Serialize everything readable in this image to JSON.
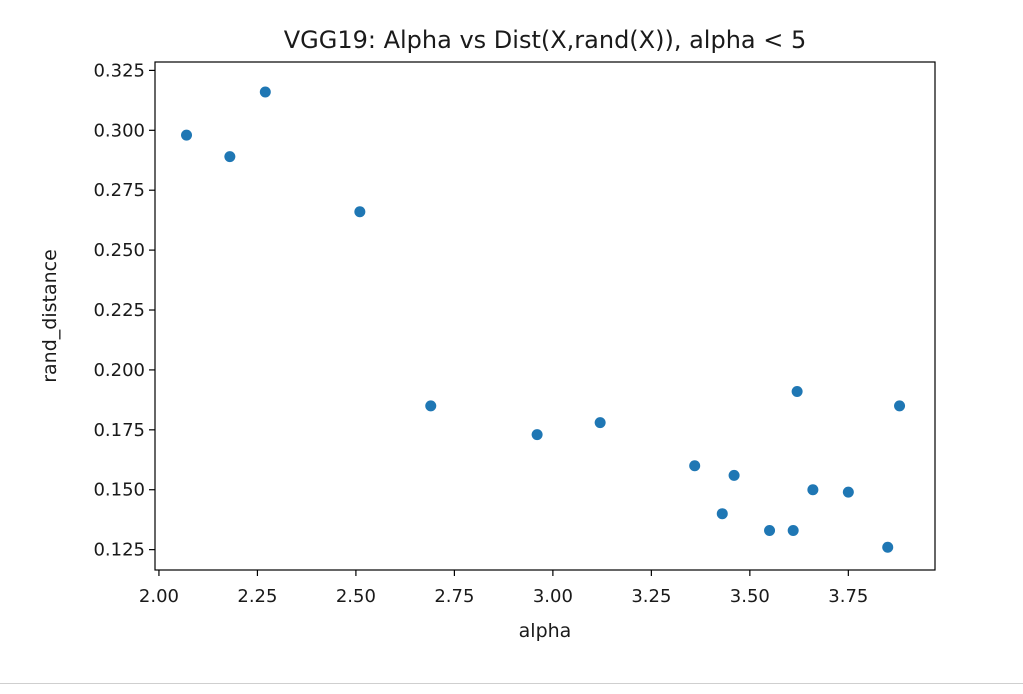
{
  "chart_data": {
    "type": "scatter",
    "title": "VGG19: Alpha vs Dist(X,rand(X)), alpha < 5",
    "xlabel": "alpha",
    "ylabel": "rand_distance",
    "xlim": [
      1.99,
      3.97
    ],
    "ylim": [
      0.1165,
      0.3285
    ],
    "xticks": [
      2.0,
      2.25,
      2.5,
      2.75,
      3.0,
      3.25,
      3.5,
      3.75
    ],
    "xtick_labels": [
      "2.00",
      "2.25",
      "2.50",
      "2.75",
      "3.00",
      "3.25",
      "3.50",
      "3.75"
    ],
    "yticks": [
      0.125,
      0.15,
      0.175,
      0.2,
      0.225,
      0.25,
      0.275,
      0.3,
      0.325
    ],
    "ytick_labels": [
      "0.125",
      "0.150",
      "0.175",
      "0.200",
      "0.225",
      "0.250",
      "0.275",
      "0.300",
      "0.325"
    ],
    "grid": false,
    "legend": false,
    "marker_color": "#1f77b4",
    "points": [
      {
        "x": 2.07,
        "y": 0.298
      },
      {
        "x": 2.18,
        "y": 0.289
      },
      {
        "x": 2.27,
        "y": 0.316
      },
      {
        "x": 2.51,
        "y": 0.266
      },
      {
        "x": 2.69,
        "y": 0.185
      },
      {
        "x": 2.96,
        "y": 0.173
      },
      {
        "x": 3.12,
        "y": 0.178
      },
      {
        "x": 3.36,
        "y": 0.16
      },
      {
        "x": 3.43,
        "y": 0.14
      },
      {
        "x": 3.46,
        "y": 0.156
      },
      {
        "x": 3.55,
        "y": 0.133
      },
      {
        "x": 3.61,
        "y": 0.133
      },
      {
        "x": 3.62,
        "y": 0.191
      },
      {
        "x": 3.66,
        "y": 0.15
      },
      {
        "x": 3.75,
        "y": 0.149
      },
      {
        "x": 3.85,
        "y": 0.126
      },
      {
        "x": 3.88,
        "y": 0.185
      }
    ]
  }
}
